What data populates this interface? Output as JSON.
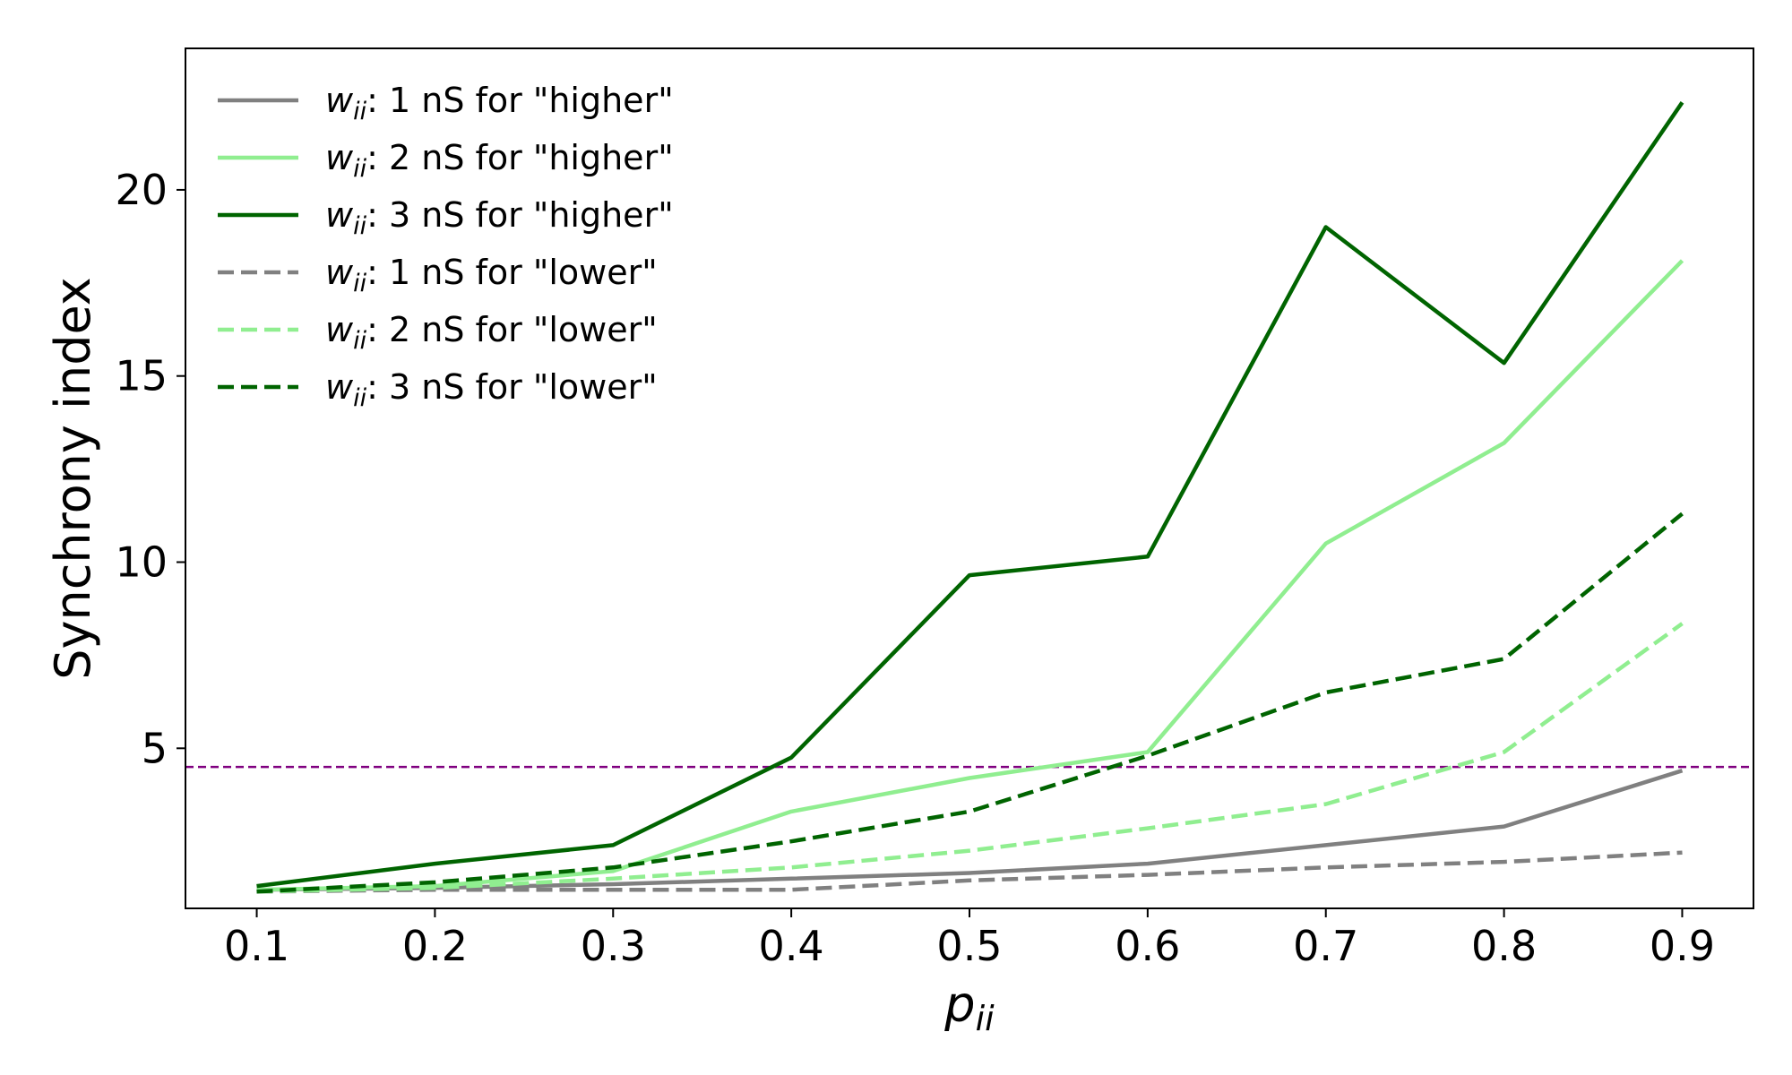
{
  "chart_data": {
    "type": "line",
    "xlabel": "p",
    "xlabel_subscript": "ii",
    "ylabel": "Synchrony index",
    "xlim": [
      0.06,
      0.94
    ],
    "ylim": [
      0.7,
      23.8
    ],
    "xticks": [
      0.1,
      0.2,
      0.3,
      0.4,
      0.5,
      0.6,
      0.7,
      0.8,
      0.9
    ],
    "xtick_labels": [
      "0.1",
      "0.2",
      "0.3",
      "0.4",
      "0.5",
      "0.6",
      "0.7",
      "0.8",
      "0.9"
    ],
    "yticks": [
      5,
      10,
      15,
      20
    ],
    "ytick_labels": [
      "5",
      "10",
      "15",
      "20"
    ],
    "grid": false,
    "legend_position": "top-left",
    "x": [
      0.1,
      0.2,
      0.3,
      0.4,
      0.5,
      0.6,
      0.7,
      0.8,
      0.9
    ],
    "series": [
      {
        "name": "w_ii: 1 nS for \"higher\"",
        "legend_rest": ": 1 nS for \"higher\"",
        "color": "#808080",
        "dash": "solid",
        "values": [
          1.2,
          1.25,
          1.35,
          1.5,
          1.65,
          1.9,
          2.4,
          2.9,
          4.4
        ]
      },
      {
        "name": "w_ii: 2 nS for \"higher\"",
        "legend_rest": ": 2 nS for \"higher\"",
        "color": "#90ee90",
        "dash": "solid",
        "values": [
          1.2,
          1.3,
          1.7,
          3.3,
          4.2,
          4.9,
          10.5,
          13.2,
          18.1
        ]
      },
      {
        "name": "w_ii: 3 nS for \"higher\"",
        "legend_rest": ": 3 nS for \"higher\"",
        "color": "#006400",
        "dash": "solid",
        "values": [
          1.3,
          1.9,
          2.4,
          4.75,
          9.65,
          10.15,
          19.0,
          15.35,
          22.35
        ]
      },
      {
        "name": "w_ii: 1 nS for \"lower\"",
        "legend_rest": ": 1 nS for \"lower\"",
        "color": "#808080",
        "dash": "dashed",
        "values": [
          1.15,
          1.2,
          1.2,
          1.2,
          1.45,
          1.6,
          1.8,
          1.95,
          2.2
        ]
      },
      {
        "name": "w_ii: 2 nS for \"lower\"",
        "legend_rest": ": 2 nS for \"lower\"",
        "color": "#90ee90",
        "dash": "dashed",
        "values": [
          1.15,
          1.25,
          1.5,
          1.8,
          2.25,
          2.85,
          3.5,
          4.9,
          8.35
        ]
      },
      {
        "name": "w_ii: 3 nS for \"lower\"",
        "legend_rest": ": 3 nS for \"lower\"",
        "color": "#006400",
        "dash": "dashed",
        "values": [
          1.15,
          1.4,
          1.8,
          2.5,
          3.3,
          4.8,
          6.5,
          7.4,
          11.3
        ]
      }
    ],
    "legend_symbol": "w",
    "legend_symbol_subscript": "ii",
    "reference_line": {
      "y": 4.5,
      "color": "#800080",
      "dash": "dashed"
    }
  }
}
